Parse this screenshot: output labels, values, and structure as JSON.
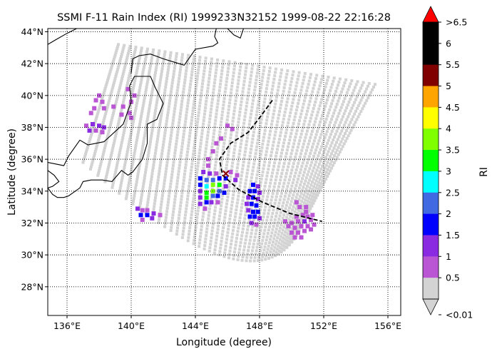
{
  "title": "SSMI F-11 Rain Index (RI) 1999233N32152 1999-08-22 22:16:28",
  "xlabel": "Longitude (degree)",
  "ylabel": "Latitude (degree)",
  "x_ticks": [
    "136°E",
    "140°E",
    "144°E",
    "148°E",
    "152°E",
    "156°E"
  ],
  "y_ticks": [
    "28°N",
    "30°N",
    "32°N",
    "34°N",
    "36°N",
    "38°N",
    "40°N",
    "42°N",
    "44°N"
  ],
  "colorbar": {
    "label": "RI",
    "tick_labels": [
      ">6.5",
      "6",
      "5.5",
      "5",
      "4.5",
      "4",
      "3.5",
      "3",
      "2.5",
      "2",
      "1.5",
      "1",
      "0.5",
      "<0.01"
    ],
    "colors": [
      "#ff0000",
      "#000000",
      "#000000",
      "#800000",
      "#ffa500",
      "#ffff00",
      "#7fff00",
      "#00ff00",
      "#00ffff",
      "#4169e1",
      "#0000ff",
      "#8a2be2",
      "#ba55d3",
      "#d3d3d3"
    ]
  },
  "chart_data": {
    "type": "map",
    "title": "SSMI F-11 Rain Index (RI) 1999233N32152 1999-08-22 22:16:28",
    "xlabel": "Longitude (degree)",
    "ylabel": "Latitude (degree)",
    "xlim": [
      134.8,
      156.8
    ],
    "ylim": [
      26.2,
      44.2
    ],
    "grid": true,
    "colorbar_levels": [
      0.01,
      0.5,
      1,
      1.5,
      2,
      2.5,
      3,
      3.5,
      4,
      4.5,
      5,
      5.5,
      6,
      6.5
    ],
    "swath_corners": {
      "top_left": [
        139.2,
        43.2
      ],
      "top_right": [
        155.2,
        40.7
      ],
      "bottom_right": [
        150.3,
        31.2
      ],
      "bottom_left": [
        137.0,
        35.8
      ],
      "bottom_center": [
        145.5,
        30.0
      ],
      "no_rain_color": "#d3d3d3"
    },
    "storm_track": [
      [
        148.8,
        39.7
      ],
      [
        148.0,
        38.6
      ],
      [
        147.3,
        37.7
      ],
      [
        146.2,
        37.0
      ],
      [
        145.5,
        36.0
      ],
      [
        145.7,
        35.0
      ],
      [
        146.7,
        34.1
      ],
      [
        148.2,
        33.3
      ],
      [
        149.9,
        32.6
      ],
      [
        151.9,
        32.1
      ]
    ],
    "storm_center": [
      145.9,
      35.1
    ],
    "rain_pixels": [
      [
        138.0,
        40.0,
        0.3
      ],
      [
        137.8,
        39.7,
        0.3
      ],
      [
        138.2,
        39.6,
        0.3
      ],
      [
        137.7,
        39.2,
        0.3
      ],
      [
        138.3,
        39.2,
        0.3
      ],
      [
        138.9,
        39.3,
        0.3
      ],
      [
        139.5,
        39.3,
        0.3
      ],
      [
        137.5,
        38.9,
        0.3
      ],
      [
        139.4,
        38.8,
        0.3
      ],
      [
        139.9,
        38.9,
        0.3
      ],
      [
        140.0,
        39.6,
        0.3
      ],
      [
        139.8,
        40.4,
        0.3
      ],
      [
        140.2,
        40.0,
        0.3
      ],
      [
        140.0,
        38.6,
        0.3
      ],
      [
        137.2,
        38.1,
        0.3
      ],
      [
        137.6,
        38.2,
        0.6
      ],
      [
        138.0,
        38.1,
        0.6
      ],
      [
        138.3,
        38.0,
        0.6
      ],
      [
        137.4,
        37.8,
        0.6
      ],
      [
        137.8,
        37.8,
        0.3
      ],
      [
        138.2,
        37.7,
        0.3
      ],
      [
        140.4,
        32.9,
        0.6
      ],
      [
        140.7,
        32.8,
        0.3
      ],
      [
        141.0,
        32.8,
        0.3
      ],
      [
        140.6,
        32.5,
        1.2
      ],
      [
        141.0,
        32.5,
        1.2
      ],
      [
        141.4,
        32.6,
        0.6
      ],
      [
        141.8,
        32.5,
        0.3
      ],
      [
        140.7,
        32.2,
        0.3
      ],
      [
        141.3,
        32.3,
        0.6
      ],
      [
        145.3,
        37.0,
        0.3
      ],
      [
        145.6,
        37.3,
        0.3
      ],
      [
        146.3,
        37.9,
        0.3
      ],
      [
        146.0,
        38.1,
        0.3
      ],
      [
        145.1,
        36.5,
        0.3
      ],
      [
        144.8,
        36.0,
        0.3
      ],
      [
        144.8,
        35.6,
        0.3
      ],
      [
        144.5,
        35.2,
        0.6
      ],
      [
        144.9,
        35.1,
        0.6
      ],
      [
        145.3,
        35.1,
        0.3
      ],
      [
        146.2,
        35.2,
        0.3
      ],
      [
        146.6,
        35.0,
        0.3
      ],
      [
        146.5,
        34.7,
        0.6
      ],
      [
        144.3,
        34.8,
        1.2
      ],
      [
        144.7,
        34.7,
        1.8
      ],
      [
        145.1,
        34.7,
        1.8
      ],
      [
        145.5,
        34.8,
        1.2
      ],
      [
        145.9,
        34.8,
        1.2
      ],
      [
        144.3,
        34.4,
        1.2
      ],
      [
        144.7,
        34.3,
        2.2
      ],
      [
        145.1,
        34.4,
        3.2
      ],
      [
        145.5,
        34.4,
        2.7
      ],
      [
        145.9,
        34.3,
        0.6
      ],
      [
        144.3,
        34.0,
        0.6
      ],
      [
        144.7,
        33.9,
        2.7
      ],
      [
        145.1,
        34.0,
        3.2
      ],
      [
        145.5,
        34.0,
        1.8
      ],
      [
        145.8,
        33.9,
        1.2
      ],
      [
        144.3,
        33.6,
        0.6
      ],
      [
        144.7,
        33.6,
        2.7
      ],
      [
        145.1,
        33.7,
        1.8
      ],
      [
        145.4,
        33.7,
        1.2
      ],
      [
        144.3,
        33.2,
        0.6
      ],
      [
        144.7,
        33.3,
        1.2
      ],
      [
        145.0,
        33.3,
        0.6
      ],
      [
        145.4,
        33.3,
        0.3
      ],
      [
        144.6,
        32.9,
        0.3
      ],
      [
        147.6,
        34.4,
        1.2
      ],
      [
        147.9,
        34.3,
        0.6
      ],
      [
        147.4,
        34.0,
        1.2
      ],
      [
        147.7,
        34.0,
        1.2
      ],
      [
        148.0,
        33.9,
        0.6
      ],
      [
        147.3,
        33.6,
        0.6
      ],
      [
        147.6,
        33.6,
        1.2
      ],
      [
        147.9,
        33.5,
        0.6
      ],
      [
        147.2,
        33.2,
        0.6
      ],
      [
        147.5,
        33.2,
        1.2
      ],
      [
        147.8,
        33.1,
        1.2
      ],
      [
        147.3,
        32.8,
        0.6
      ],
      [
        147.6,
        32.7,
        1.2
      ],
      [
        147.9,
        32.7,
        1.2
      ],
      [
        147.4,
        32.4,
        1.2
      ],
      [
        147.7,
        32.4,
        1.2
      ],
      [
        148.0,
        32.3,
        0.6
      ],
      [
        147.5,
        32.0,
        0.6
      ],
      [
        147.8,
        31.9,
        0.3
      ],
      [
        150.3,
        33.3,
        0.3
      ],
      [
        150.5,
        33.0,
        0.3
      ],
      [
        150.9,
        32.7,
        0.3
      ],
      [
        150.9,
        33.0,
        0.3
      ],
      [
        150.3,
        32.4,
        0.3
      ],
      [
        150.7,
        32.5,
        0.3
      ],
      [
        151.0,
        32.4,
        0.3
      ],
      [
        151.3,
        32.5,
        0.3
      ],
      [
        149.6,
        32.1,
        0.3
      ],
      [
        150.0,
        32.0,
        0.3
      ],
      [
        150.4,
        32.1,
        0.3
      ],
      [
        150.8,
        32.1,
        0.6
      ],
      [
        151.2,
        32.2,
        0.3
      ],
      [
        149.8,
        31.8,
        0.3
      ],
      [
        150.2,
        31.7,
        0.3
      ],
      [
        150.6,
        31.8,
        0.3
      ],
      [
        151.0,
        31.8,
        0.3
      ],
      [
        151.4,
        31.9,
        0.3
      ],
      [
        150.0,
        31.4,
        0.3
      ],
      [
        150.4,
        31.4,
        0.3
      ],
      [
        150.8,
        31.5,
        0.3
      ],
      [
        151.2,
        31.6,
        0.3
      ],
      [
        150.2,
        31.1,
        0.3
      ],
      [
        150.6,
        31.1,
        0.3
      ]
    ]
  },
  "coastlines": [
    [
      [
        134.8,
        35.8
      ],
      [
        135.8,
        35.6
      ],
      [
        136.1,
        36.2
      ],
      [
        136.8,
        37.2
      ],
      [
        137.3,
        36.9
      ],
      [
        138.3,
        37.1
      ],
      [
        139.5,
        38.2
      ],
      [
        140.0,
        39.6
      ],
      [
        139.9,
        40.6
      ],
      [
        140.2,
        41.2
      ],
      [
        141.2,
        41.2
      ],
      [
        141.5,
        40.5
      ],
      [
        142.0,
        39.5
      ],
      [
        141.6,
        38.5
      ],
      [
        141.0,
        38.2
      ],
      [
        141.0,
        37.0
      ],
      [
        140.7,
        36.0
      ],
      [
        140.1,
        35.2
      ],
      [
        139.8,
        35.0
      ],
      [
        139.4,
        35.3
      ],
      [
        138.8,
        34.6
      ],
      [
        138.2,
        34.7
      ],
      [
        137.5,
        34.7
      ],
      [
        137.0,
        34.6
      ],
      [
        136.8,
        34.2
      ],
      [
        136.1,
        33.7
      ],
      [
        135.8,
        33.6
      ],
      [
        135.4,
        33.6
      ],
      [
        135.1,
        33.8
      ],
      [
        134.8,
        34.2
      ]
    ],
    [
      [
        140.0,
        41.4
      ],
      [
        140.1,
        42.3
      ],
      [
        140.5,
        42.5
      ],
      [
        141.2,
        42.6
      ],
      [
        142.0,
        42.3
      ],
      [
        143.3,
        41.9
      ],
      [
        144.0,
        42.9
      ],
      [
        145.1,
        43.1
      ],
      [
        145.4,
        43.3
      ],
      [
        145.2,
        43.7
      ],
      [
        145.3,
        44.2
      ]
    ],
    [
      [
        134.8,
        43.2
      ],
      [
        135.3,
        43.5
      ],
      [
        136.0,
        43.9
      ],
      [
        136.6,
        44.2
      ]
    ],
    [
      [
        134.8,
        35.3
      ],
      [
        135.2,
        35.0
      ],
      [
        135.5,
        34.6
      ],
      [
        135.1,
        34.3
      ],
      [
        134.8,
        34.2
      ]
    ],
    [
      [
        146.0,
        44.2
      ],
      [
        146.4,
        43.8
      ],
      [
        146.8,
        43.6
      ],
      [
        147.0,
        44.2
      ]
    ]
  ]
}
